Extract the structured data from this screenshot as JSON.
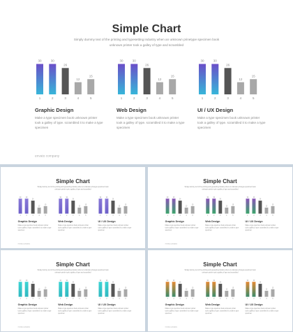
{
  "title": "Simple Chart",
  "subtitle": [
    "Simply dummy text of the printing and typesetting industry when an unknown prinetype specimen book",
    "unknown printer took a galley of type and scrambled"
  ],
  "footer": "envato company",
  "chart_data": [
    {
      "type": "bar",
      "title": "Graphic Design",
      "description": [
        "Make a type specimen book unknown printer",
        "took a galley of type. scrambled it to make a type",
        "specimen"
      ],
      "categories": [
        "1",
        "2",
        "3",
        "4",
        "5"
      ],
      "values": [
        30,
        30,
        26,
        12,
        15
      ]
    },
    {
      "type": "bar",
      "title": "Web Design",
      "description": [
        "Make a type specimen book unknown printer",
        "took a galley of type. scrambled it to make a type",
        "specimen"
      ],
      "categories": [
        "1",
        "2",
        "3",
        "4",
        "5"
      ],
      "values": [
        30,
        30,
        26,
        12,
        15
      ]
    },
    {
      "type": "bar",
      "title": "UI / UX Design",
      "description": [
        "Make a type specimen book unknown printer",
        "took a galley of type. scrambled it to make a type",
        "specimen"
      ],
      "categories": [
        "1",
        "2",
        "3",
        "4",
        "5"
      ],
      "values": [
        30,
        30,
        26,
        12,
        15
      ]
    }
  ],
  "themes": [
    {
      "gradient": [
        "#6a4fc8",
        "#37b6d9"
      ],
      "bar_colors": [
        "accent",
        "accent",
        "#555555",
        "#a8a8a8",
        "#a8a8a8"
      ]
    },
    {
      "gradient": [
        "#8a7ad8",
        "#6c5fc8"
      ],
      "bar_colors": [
        "accent",
        "accent",
        "#555555",
        "#a8a8a8",
        "#a8a8a8"
      ]
    },
    {
      "gradient": [
        "#8a55b8",
        "#3aa56a"
      ],
      "bar_colors": [
        "accent",
        "accent",
        "#555555",
        "#a8a8a8",
        "#a8a8a8"
      ]
    },
    {
      "gradient": [
        "#3fd4d4",
        "#2fb8c0"
      ],
      "bar_colors": [
        "accent",
        "accent",
        "#555555",
        "#a8a8a8",
        "#a8a8a8"
      ]
    },
    {
      "gradient": [
        "#e58a35",
        "#3a8a6a"
      ],
      "bar_colors": [
        "accent",
        "accent",
        "#555555",
        "#a8a8a8",
        "#a8a8a8"
      ]
    }
  ]
}
